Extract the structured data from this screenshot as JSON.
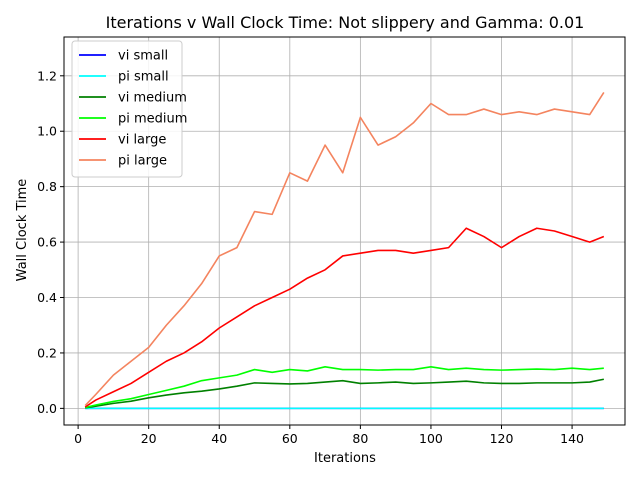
{
  "chart_data": {
    "type": "line",
    "title": "Iterations v Wall Clock Time: Not slippery and Gamma: 0.01",
    "xlabel": "Iterations",
    "ylabel": "Wall Clock Time",
    "xlim": [
      -4,
      155
    ],
    "ylim": [
      -0.06,
      1.34
    ],
    "xticks": [
      0,
      20,
      40,
      60,
      80,
      100,
      120,
      140
    ],
    "yticks": [
      0.0,
      0.2,
      0.4,
      0.6,
      0.8,
      1.0,
      1.2
    ],
    "xtick_labels": [
      "0",
      "20",
      "40",
      "60",
      "80",
      "100",
      "120",
      "140"
    ],
    "ytick_labels": [
      "0.0",
      "0.2",
      "0.4",
      "0.6",
      "0.8",
      "1.0",
      "1.2"
    ],
    "grid": true,
    "legend_position": "top-left",
    "x": [
      2,
      5,
      10,
      15,
      20,
      25,
      30,
      35,
      40,
      45,
      50,
      55,
      60,
      65,
      70,
      75,
      80,
      85,
      90,
      95,
      100,
      105,
      110,
      115,
      120,
      125,
      130,
      135,
      140,
      145,
      149
    ],
    "series": [
      {
        "name": "vi small",
        "color": "#0000ff",
        "values": [
          0,
          0,
          0,
          0,
          0,
          0,
          0,
          0,
          0,
          0,
          0,
          0,
          0,
          0,
          0,
          0,
          0,
          0,
          0,
          0,
          0,
          0,
          0,
          0,
          0,
          0,
          0,
          0,
          0,
          0,
          0
        ]
      },
      {
        "name": "pi small",
        "color": "#00ffff",
        "values": [
          0,
          0,
          0,
          0,
          0,
          0,
          0,
          0,
          0,
          0,
          0,
          0,
          0,
          0,
          0,
          0,
          0,
          0,
          0,
          0,
          0,
          0,
          0,
          0,
          0,
          0,
          0,
          0,
          0,
          0,
          0
        ]
      },
      {
        "name": "vi medium",
        "color": "#008000",
        "values": [
          0.002,
          0.008,
          0.018,
          0.026,
          0.038,
          0.048,
          0.056,
          0.062,
          0.07,
          0.08,
          0.092,
          0.09,
          0.088,
          0.09,
          0.095,
          0.1,
          0.09,
          0.092,
          0.095,
          0.09,
          0.092,
          0.095,
          0.098,
          0.092,
          0.09,
          0.09,
          0.092,
          0.092,
          0.092,
          0.095,
          0.105
        ]
      },
      {
        "name": "pi medium",
        "color": "#00ff00",
        "values": [
          0.003,
          0.012,
          0.025,
          0.035,
          0.05,
          0.065,
          0.08,
          0.1,
          0.11,
          0.12,
          0.14,
          0.13,
          0.14,
          0.135,
          0.15,
          0.14,
          0.14,
          0.138,
          0.14,
          0.14,
          0.15,
          0.14,
          0.145,
          0.14,
          0.138,
          0.14,
          0.142,
          0.14,
          0.145,
          0.14,
          0.145
        ]
      },
      {
        "name": "vi large",
        "color": "#ff0000",
        "values": [
          0.005,
          0.03,
          0.06,
          0.09,
          0.13,
          0.17,
          0.2,
          0.24,
          0.29,
          0.33,
          0.37,
          0.4,
          0.43,
          0.47,
          0.5,
          0.55,
          0.56,
          0.57,
          0.57,
          0.56,
          0.57,
          0.58,
          0.65,
          0.62,
          0.58,
          0.62,
          0.65,
          0.64,
          0.62,
          0.6,
          0.62
        ]
      },
      {
        "name": "pi large",
        "color": "#f4845f",
        "values": [
          0.01,
          0.05,
          0.12,
          0.17,
          0.22,
          0.3,
          0.37,
          0.45,
          0.55,
          0.58,
          0.71,
          0.7,
          0.85,
          0.82,
          0.95,
          0.85,
          1.05,
          0.95,
          0.98,
          1.03,
          1.1,
          1.06,
          1.06,
          1.08,
          1.06,
          1.07,
          1.06,
          1.08,
          1.07,
          1.06,
          1.14
        ]
      }
    ]
  }
}
